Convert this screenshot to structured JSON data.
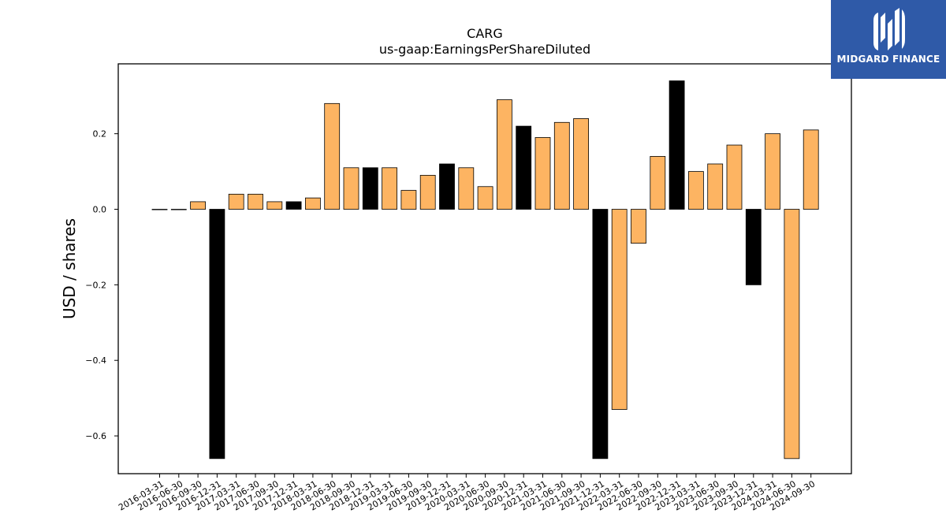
{
  "brand": {
    "name": "MIDGARD FINANCE",
    "mark_icon": "midgard-logo-icon",
    "background": "#2f5aa8"
  },
  "chart_data": {
    "type": "bar",
    "title": "CARG",
    "subtitle": "us-gaap:EarningsPerShareDiluted",
    "xlabel": "",
    "ylabel": "USD / shares",
    "ylim": [
      -0.7,
      0.385
    ],
    "yticks": [
      0.2,
      0.0,
      -0.2,
      -0.4,
      -0.6
    ],
    "ytick_labels": [
      "0.2",
      "0.0",
      "−0.2",
      "−0.4",
      "−0.6"
    ],
    "grid": false,
    "colors": {
      "quarter": "#fdb462",
      "annual": "#000000",
      "edge": "#000000"
    },
    "categories": [
      "2016-03-31",
      "2016-06-30",
      "2016-09-30",
      "2016-12-31",
      "2017-03-31",
      "2017-06-30",
      "2017-09-30",
      "2017-12-31",
      "2018-03-31",
      "2018-06-30",
      "2018-09-30",
      "2018-12-31",
      "2019-03-31",
      "2019-06-30",
      "2019-09-30",
      "2019-12-31",
      "2020-03-31",
      "2020-06-30",
      "2020-09-30",
      "2020-12-31",
      "2021-03-31",
      "2021-06-30",
      "2021-09-30",
      "2021-12-31",
      "2022-03-31",
      "2022-06-30",
      "2022-09-30",
      "2022-12-31",
      "2023-03-31",
      "2023-06-30",
      "2023-09-30",
      "2023-12-31",
      "2024-03-31",
      "2024-06-30",
      "2024-09-30"
    ],
    "values": [
      0.0,
      0.0,
      0.02,
      -0.66,
      0.04,
      0.04,
      0.02,
      0.02,
      0.03,
      0.28,
      0.11,
      0.11,
      0.11,
      0.05,
      0.09,
      0.12,
      0.11,
      0.06,
      0.29,
      0.22,
      0.19,
      0.23,
      0.24,
      -0.66,
      -0.53,
      -0.09,
      0.14,
      0.34,
      0.1,
      0.12,
      0.17,
      -0.2,
      0.2,
      -0.66,
      0.21
    ],
    "highlight": [
      false,
      false,
      false,
      true,
      false,
      false,
      false,
      true,
      false,
      false,
      false,
      true,
      false,
      false,
      false,
      true,
      false,
      false,
      false,
      true,
      false,
      false,
      false,
      true,
      false,
      false,
      false,
      true,
      false,
      false,
      false,
      true,
      false,
      false,
      false
    ]
  }
}
